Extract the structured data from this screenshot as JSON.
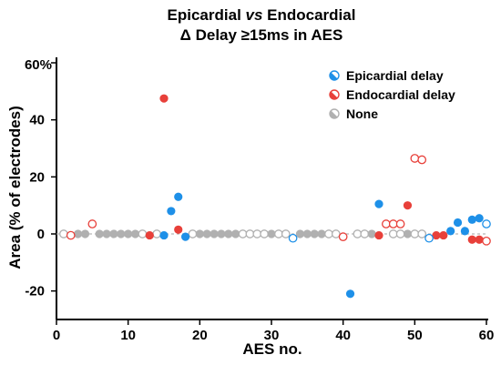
{
  "chart_data": {
    "type": "scatter",
    "title_line1_part1": "Epicardial ",
    "title_line1_italic": "vs",
    "title_line1_part2": " Endocardial",
    "title_line2": "Δ Delay ≥15ms in AES",
    "xlabel": "AES no.",
    "ylabel": "Area (% of electrodes)",
    "xlim": [
      0,
      60
    ],
    "ylim": [
      -30,
      60
    ],
    "xticks": [
      0,
      10,
      20,
      30,
      40,
      50,
      60
    ],
    "yticks": [
      -20,
      0,
      20,
      40
    ],
    "ytick_labels": [
      "-20",
      "0",
      "20",
      "40"
    ],
    "ytop_label": "60%",
    "grid": false,
    "legend_position": "top-right",
    "legend": [
      {
        "label": "Epicardial delay",
        "color": "#1e90e8"
      },
      {
        "label": "Endocardial delay",
        "color": "#e8403a"
      },
      {
        "label": "None",
        "color": "#b0b0b0"
      }
    ],
    "series": [
      {
        "name": "Epicardial delay",
        "color": "#1e90e8",
        "points": [
          {
            "x": 15,
            "y": -0.5,
            "filled": true
          },
          {
            "x": 16,
            "y": 8,
            "filled": true
          },
          {
            "x": 17,
            "y": 13,
            "filled": true
          },
          {
            "x": 18,
            "y": -1,
            "filled": true
          },
          {
            "x": 33,
            "y": -1.5,
            "filled": false
          },
          {
            "x": 41,
            "y": -21,
            "filled": true
          },
          {
            "x": 45,
            "y": 10.5,
            "filled": true
          },
          {
            "x": 52,
            "y": -1.5,
            "filled": false
          },
          {
            "x": 55,
            "y": 1,
            "filled": true
          },
          {
            "x": 56,
            "y": 4,
            "filled": true
          },
          {
            "x": 57,
            "y": 1,
            "filled": true
          },
          {
            "x": 58,
            "y": 5,
            "filled": true
          },
          {
            "x": 59,
            "y": 5.5,
            "filled": true
          },
          {
            "x": 60,
            "y": 3.5,
            "filled": false
          }
        ]
      },
      {
        "name": "Endocardial delay",
        "color": "#e8403a",
        "points": [
          {
            "x": 2,
            "y": -0.5,
            "filled": false
          },
          {
            "x": 5,
            "y": 3.5,
            "filled": false
          },
          {
            "x": 13,
            "y": -0.5,
            "filled": true
          },
          {
            "x": 15,
            "y": 47.5,
            "filled": true
          },
          {
            "x": 17,
            "y": 1.5,
            "filled": true
          },
          {
            "x": 40,
            "y": -1,
            "filled": false
          },
          {
            "x": 45,
            "y": -0.5,
            "filled": true
          },
          {
            "x": 46,
            "y": 3.5,
            "filled": false
          },
          {
            "x": 47,
            "y": 3.5,
            "filled": false
          },
          {
            "x": 48,
            "y": 3.5,
            "filled": false
          },
          {
            "x": 49,
            "y": 10,
            "filled": true
          },
          {
            "x": 50,
            "y": 26.5,
            "filled": false
          },
          {
            "x": 51,
            "y": 26,
            "filled": false
          },
          {
            "x": 53,
            "y": -0.5,
            "filled": true
          },
          {
            "x": 54,
            "y": -0.5,
            "filled": true
          },
          {
            "x": 58,
            "y": -2,
            "filled": true
          },
          {
            "x": 59,
            "y": -2,
            "filled": true
          },
          {
            "x": 60,
            "y": -2.5,
            "filled": false
          }
        ]
      },
      {
        "name": "None",
        "color": "#b0b0b0",
        "points": [
          {
            "x": 1,
            "y": 0,
            "filled": false
          },
          {
            "x": 3,
            "y": 0,
            "filled": true
          },
          {
            "x": 4,
            "y": 0,
            "filled": true
          },
          {
            "x": 6,
            "y": 0,
            "filled": true
          },
          {
            "x": 7,
            "y": 0,
            "filled": true
          },
          {
            "x": 8,
            "y": 0,
            "filled": true
          },
          {
            "x": 9,
            "y": 0,
            "filled": true
          },
          {
            "x": 10,
            "y": 0,
            "filled": true
          },
          {
            "x": 11,
            "y": 0,
            "filled": true
          },
          {
            "x": 12,
            "y": 0,
            "filled": false
          },
          {
            "x": 14,
            "y": 0,
            "filled": false
          },
          {
            "x": 19,
            "y": 0,
            "filled": false
          },
          {
            "x": 20,
            "y": 0,
            "filled": true
          },
          {
            "x": 21,
            "y": 0,
            "filled": true
          },
          {
            "x": 22,
            "y": 0,
            "filled": true
          },
          {
            "x": 23,
            "y": 0,
            "filled": true
          },
          {
            "x": 24,
            "y": 0,
            "filled": true
          },
          {
            "x": 25,
            "y": 0,
            "filled": true
          },
          {
            "x": 26,
            "y": 0,
            "filled": false
          },
          {
            "x": 27,
            "y": 0,
            "filled": false
          },
          {
            "x": 28,
            "y": 0,
            "filled": false
          },
          {
            "x": 29,
            "y": 0,
            "filled": false
          },
          {
            "x": 30,
            "y": 0,
            "filled": true
          },
          {
            "x": 31,
            "y": 0,
            "filled": false
          },
          {
            "x": 32,
            "y": 0,
            "filled": false
          },
          {
            "x": 34,
            "y": 0,
            "filled": true
          },
          {
            "x": 35,
            "y": 0,
            "filled": true
          },
          {
            "x": 36,
            "y": 0,
            "filled": true
          },
          {
            "x": 37,
            "y": 0,
            "filled": true
          },
          {
            "x": 38,
            "y": 0,
            "filled": false
          },
          {
            "x": 39,
            "y": 0,
            "filled": false
          },
          {
            "x": 42,
            "y": 0,
            "filled": false
          },
          {
            "x": 43,
            "y": 0,
            "filled": false
          },
          {
            "x": 44,
            "y": 0,
            "filled": true
          },
          {
            "x": 47,
            "y": 0,
            "filled": false
          },
          {
            "x": 48,
            "y": 0,
            "filled": false
          },
          {
            "x": 49,
            "y": 0,
            "filled": true
          },
          {
            "x": 50,
            "y": 0,
            "filled": false
          },
          {
            "x": 51,
            "y": 0,
            "filled": false
          }
        ]
      }
    ]
  }
}
